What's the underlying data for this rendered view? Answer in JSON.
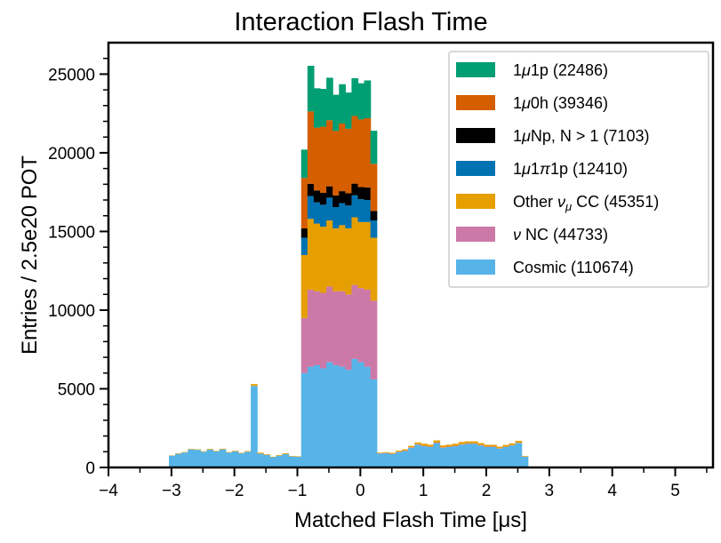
{
  "chart_data": {
    "type": "histogram-stacked",
    "title": "Interaction Flash Time",
    "xlabel": "Matched Flash Time [μs]",
    "ylabel": "Entries / 2.5e20 POT",
    "xlim": [
      -4,
      5.6
    ],
    "ylim": [
      0,
      27000
    ],
    "xticks": [
      -4,
      -3,
      -2,
      -1,
      0,
      1,
      2,
      3,
      4,
      5
    ],
    "xtick_labels": [
      "−4",
      "−3",
      "−2",
      "−1",
      "0",
      "1",
      "2",
      "3",
      "4",
      "5"
    ],
    "yticks": [
      0,
      5000,
      10000,
      15000,
      20000,
      25000
    ],
    "ytick_labels": [
      "0",
      "5000",
      "10000",
      "15000",
      "20000",
      "25000"
    ],
    "bin_start": -3.04,
    "bin_width": 0.1,
    "legend_position": "top-right",
    "series": [
      {
        "name": "Cosmic (110674)",
        "label_main": "Cosmic (110674)",
        "color": "#56b4e9",
        "values": [
          750,
          870,
          950,
          1150,
          1120,
          1000,
          1130,
          1020,
          1150,
          950,
          1020,
          900,
          1000,
          5180,
          880,
          800,
          650,
          750,
          850,
          700,
          680,
          6000,
          6400,
          6500,
          6300,
          6700,
          6500,
          6400,
          6200,
          6900,
          6700,
          6400,
          5600,
          880,
          900,
          850,
          980,
          1050,
          1250,
          1450,
          1350,
          1300,
          1550,
          1250,
          1300,
          1350,
          1450,
          1500,
          1500,
          1400,
          1300,
          1300,
          1200,
          1300,
          1400,
          1550,
          680
        ]
      },
      {
        "name": "ν NC (44733)",
        "label_pre": "ν",
        "label_main": " NC (44733)",
        "color": "#cc79a7",
        "values": [
          0,
          0,
          0,
          0,
          0,
          0,
          0,
          0,
          0,
          0,
          0,
          0,
          0,
          0,
          0,
          0,
          0,
          0,
          0,
          0,
          0,
          3500,
          4900,
          4700,
          4800,
          4800,
          4700,
          4800,
          4800,
          4700,
          4700,
          4900,
          5000,
          20,
          20,
          20,
          20,
          20,
          30,
          30,
          30,
          30,
          30,
          30,
          30,
          30,
          30,
          30,
          30,
          30,
          30,
          30,
          20,
          20,
          20,
          20,
          10
        ]
      },
      {
        "name": "Other νμ CC (45351)",
        "label_main": "Other ",
        "label_nu": "ν",
        "label_sub": "μ",
        "label_post": " CC (45351)",
        "color": "#e69f00",
        "values": [
          20,
          30,
          30,
          30,
          30,
          30,
          40,
          30,
          40,
          30,
          40,
          30,
          40,
          120,
          60,
          40,
          30,
          40,
          50,
          30,
          30,
          4000,
          4500,
          4300,
          4200,
          4200,
          4000,
          4200,
          4200,
          4300,
          4200,
          4300,
          4000,
          40,
          50,
          60,
          70,
          80,
          90,
          110,
          130,
          120,
          140,
          120,
          120,
          130,
          140,
          130,
          130,
          120,
          110,
          110,
          100,
          110,
          110,
          120,
          40
        ]
      },
      {
        "name": "1μ1π1p (12410)",
        "label_pre": "1",
        "label_mu": "μ",
        "label_main": "1",
        "label_pi": "π",
        "label_post": "1p (12410)",
        "color": "#0072b2",
        "values": [
          0,
          0,
          0,
          0,
          0,
          0,
          0,
          0,
          0,
          0,
          0,
          0,
          0,
          0,
          0,
          0,
          0,
          0,
          0,
          0,
          0,
          1100,
          1450,
          1350,
          1400,
          1450,
          1350,
          1400,
          1450,
          1400,
          1450,
          1400,
          1100,
          0,
          0,
          0,
          0,
          0,
          0,
          0,
          0,
          0,
          0,
          0,
          0,
          0,
          0,
          0,
          0,
          0,
          0,
          0,
          0,
          0,
          0,
          0,
          0
        ]
      },
      {
        "name": "1μNp, N > 1 (7103)",
        "label_pre": "1",
        "label_mu": "μ",
        "label_main": "Np, N > 1 (7103)",
        "color": "#000000",
        "values": [
          0,
          0,
          0,
          0,
          0,
          0,
          0,
          0,
          0,
          0,
          0,
          0,
          0,
          0,
          0,
          0,
          0,
          0,
          0,
          0,
          0,
          600,
          780,
          750,
          760,
          720,
          740,
          760,
          780,
          740,
          770,
          800,
          600,
          0,
          0,
          0,
          0,
          0,
          0,
          0,
          0,
          0,
          0,
          0,
          0,
          0,
          0,
          0,
          0,
          0,
          0,
          0,
          0,
          0,
          0,
          0,
          0
        ]
      },
      {
        "name": "1μ0h (39346)",
        "label_pre": "1",
        "label_mu": "μ",
        "label_main": "0h (39346)",
        "color": "#d55e00",
        "values": [
          0,
          0,
          0,
          0,
          0,
          0,
          0,
          0,
          0,
          0,
          0,
          0,
          0,
          0,
          0,
          0,
          0,
          0,
          0,
          0,
          0,
          3200,
          4600,
          4000,
          4200,
          4200,
          4100,
          4300,
          4100,
          4300,
          4300,
          4400,
          3000,
          0,
          0,
          0,
          0,
          0,
          0,
          0,
          0,
          0,
          0,
          0,
          0,
          0,
          0,
          0,
          0,
          0,
          0,
          0,
          0,
          0,
          0,
          0,
          0
        ]
      },
      {
        "name": "1μ1p (22486)",
        "label_pre": "1",
        "label_mu": "μ",
        "label_main": "1p (22486)",
        "color": "#009e73",
        "values": [
          0,
          0,
          0,
          0,
          0,
          0,
          0,
          0,
          0,
          0,
          0,
          0,
          0,
          0,
          0,
          0,
          0,
          0,
          0,
          0,
          0,
          1800,
          2900,
          2500,
          2400,
          2700,
          2300,
          2500,
          2300,
          2400,
          2300,
          2400,
          2100,
          0,
          0,
          0,
          0,
          0,
          0,
          0,
          0,
          0,
          0,
          0,
          0,
          0,
          0,
          0,
          0,
          0,
          0,
          0,
          0,
          0,
          0,
          0,
          0
        ]
      }
    ],
    "legend_order": [
      6,
      5,
      4,
      3,
      2,
      1,
      0
    ]
  }
}
